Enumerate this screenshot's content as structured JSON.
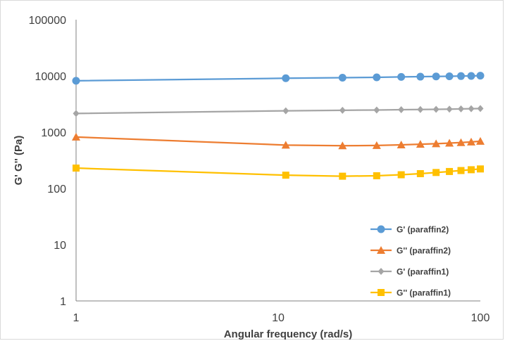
{
  "chart_data": {
    "type": "line",
    "title": "",
    "xlabel": "Angular frequency (rad/s)",
    "ylabel": "G' G'' (Pa)",
    "xscale": "log",
    "yscale": "log",
    "xlim": [
      1,
      100
    ],
    "ylim": [
      1,
      100000
    ],
    "x_ticks": [
      1,
      10,
      100
    ],
    "x_tick_labels": [
      "1",
      "10",
      "100"
    ],
    "y_ticks": [
      1,
      10,
      100,
      1000,
      10000,
      100000
    ],
    "y_tick_labels": [
      "1",
      "10",
      "100",
      "1000",
      "10000",
      "100000"
    ],
    "grid": false,
    "legend_position": "bottom-right",
    "x": [
      1,
      10.9,
      20.8,
      30.7,
      40.6,
      50.5,
      60.4,
      70.3,
      80.2,
      90.1,
      100
    ],
    "series": [
      {
        "name": "G' (paraffin2)",
        "color": "#5b9bd5",
        "marker": "circle",
        "values": [
          8200,
          9100,
          9300,
          9450,
          9600,
          9700,
          9800,
          9850,
          9950,
          10000,
          10100
        ]
      },
      {
        "name": "G'' (paraffin2)",
        "color": "#ed7d31",
        "marker": "triangle",
        "values": [
          820,
          590,
          575,
          580,
          595,
          610,
          625,
          640,
          655,
          670,
          690
        ]
      },
      {
        "name": "G' (paraffin1)",
        "color": "#a5a5a5",
        "marker": "diamond",
        "values": [
          2150,
          2400,
          2450,
          2480,
          2510,
          2530,
          2550,
          2570,
          2590,
          2610,
          2630
        ]
      },
      {
        "name": "G'' (paraffin1)",
        "color": "#ffc000",
        "marker": "square",
        "values": [
          230,
          172,
          165,
          168,
          175,
          183,
          192,
          200,
          208,
          215,
          222
        ]
      }
    ]
  }
}
